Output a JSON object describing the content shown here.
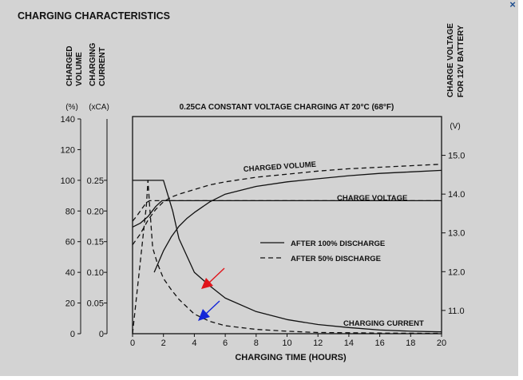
{
  "window": {
    "close_glyph": "×"
  },
  "colors": {
    "background": "#d3d3d3",
    "ink": "#111111",
    "arrow_red": "#e0141a",
    "arrow_blue": "#1426d8"
  },
  "chart_data": {
    "type": "line",
    "title": "CHARGING CHARACTERISTICS",
    "subtitle": "0.25CA CONSTANT VOLTAGE CHARGING AT 20°C (68°F)",
    "xlabel": "CHARGING TIME (HOURS)",
    "xlim": [
      0,
      20
    ],
    "x_ticks": [
      "0",
      "2",
      "4",
      "6",
      "8",
      "10",
      "12",
      "14",
      "16",
      "18",
      "20"
    ],
    "axes": {
      "volume": {
        "label_lines": [
          "CHARGED",
          "VOLUME"
        ],
        "unit": "(%)",
        "lim": [
          0,
          140
        ],
        "ticks": [
          "0",
          "20",
          "40",
          "60",
          "80",
          "100",
          "120",
          "140"
        ]
      },
      "current": {
        "label_lines": [
          "CHARGING",
          "CURRENT"
        ],
        "unit": "(xCA)",
        "lim": [
          0,
          0.35
        ],
        "ticks": [
          "0",
          "0.05",
          "0.10",
          "0.15",
          "0.20",
          "0.25"
        ]
      },
      "voltage": {
        "label_lines": [
          "CHARGE VOLTAGE",
          "FOR 12V BATTERY"
        ],
        "unit": "(V)",
        "lim": [
          10.4,
          16.0
        ],
        "ticks": [
          "11.0",
          "12.0",
          "13.0",
          "14.0",
          "15.0"
        ]
      }
    },
    "legend": {
      "placement": "center-right",
      "entries": [
        {
          "label": "AFTER 100% DISCHARGE",
          "style": "solid"
        },
        {
          "label": "AFTER 50% DISCHARGE",
          "style": "dashed"
        }
      ]
    },
    "annotations": {
      "charged_volume": "CHARGED VOLUME",
      "charge_voltage": "CHARGE VOLTAGE",
      "charging_current": "CHARGING CURRENT"
    },
    "series": [
      {
        "id": "volume-100",
        "axis": "volume",
        "style": "solid",
        "x": [
          1.4,
          2,
          2.5,
          3,
          3.5,
          4,
          5,
          6,
          8,
          10,
          12,
          14,
          16,
          18,
          20
        ],
        "y": [
          40,
          54,
          63,
          70,
          75,
          79,
          86,
          91,
          96,
          99,
          101,
          103,
          104.5,
          105.5,
          106.5
        ]
      },
      {
        "id": "volume-50",
        "axis": "volume",
        "style": "dashed",
        "x": [
          0,
          0.5,
          1,
          1.5,
          2,
          2.5,
          3,
          4,
          5,
          6,
          8,
          10,
          12,
          14,
          16,
          18,
          20
        ],
        "y": [
          58,
          65,
          74,
          81,
          86,
          89,
          91,
          94,
          97,
          99,
          102,
          104,
          106,
          107.5,
          108.5,
          109.5,
          110.5
        ]
      },
      {
        "id": "voltage-100",
        "axis": "voltage",
        "style": "solid",
        "x": [
          0,
          0.5,
          1,
          1.5,
          1.9,
          2.1,
          20
        ],
        "y": [
          13.15,
          13.25,
          13.42,
          13.68,
          13.83,
          13.83,
          13.83
        ]
      },
      {
        "id": "voltage-50",
        "axis": "voltage",
        "style": "dashed",
        "x": [
          0,
          0.3,
          0.6,
          0.9,
          1.1,
          1.3,
          20
        ],
        "y": [
          13.3,
          13.45,
          13.62,
          13.78,
          13.83,
          13.83,
          13.83
        ]
      },
      {
        "id": "current-100",
        "axis": "current",
        "style": "solid",
        "x": [
          0,
          2,
          2.6,
          3,
          4,
          5,
          6,
          8,
          10,
          12,
          14,
          16,
          18,
          20
        ],
        "y": [
          0.25,
          0.25,
          0.2,
          0.155,
          0.1,
          0.078,
          0.058,
          0.036,
          0.023,
          0.015,
          0.01,
          0.006,
          0.004,
          0.003
        ]
      },
      {
        "id": "current-50",
        "axis": "current",
        "style": "dashed",
        "x": [
          0,
          0.9,
          1.0,
          1.1,
          1.3,
          1.6,
          2,
          2.5,
          3,
          4,
          5,
          6,
          8,
          10,
          12,
          14,
          16,
          18,
          20
        ],
        "y": [
          0,
          0.21,
          0.25,
          0.21,
          0.14,
          0.115,
          0.09,
          0.072,
          0.056,
          0.032,
          0.02,
          0.013,
          0.007,
          0.004,
          0.002,
          0.0015,
          0.001,
          0.0008,
          0.0005
        ]
      }
    ]
  }
}
